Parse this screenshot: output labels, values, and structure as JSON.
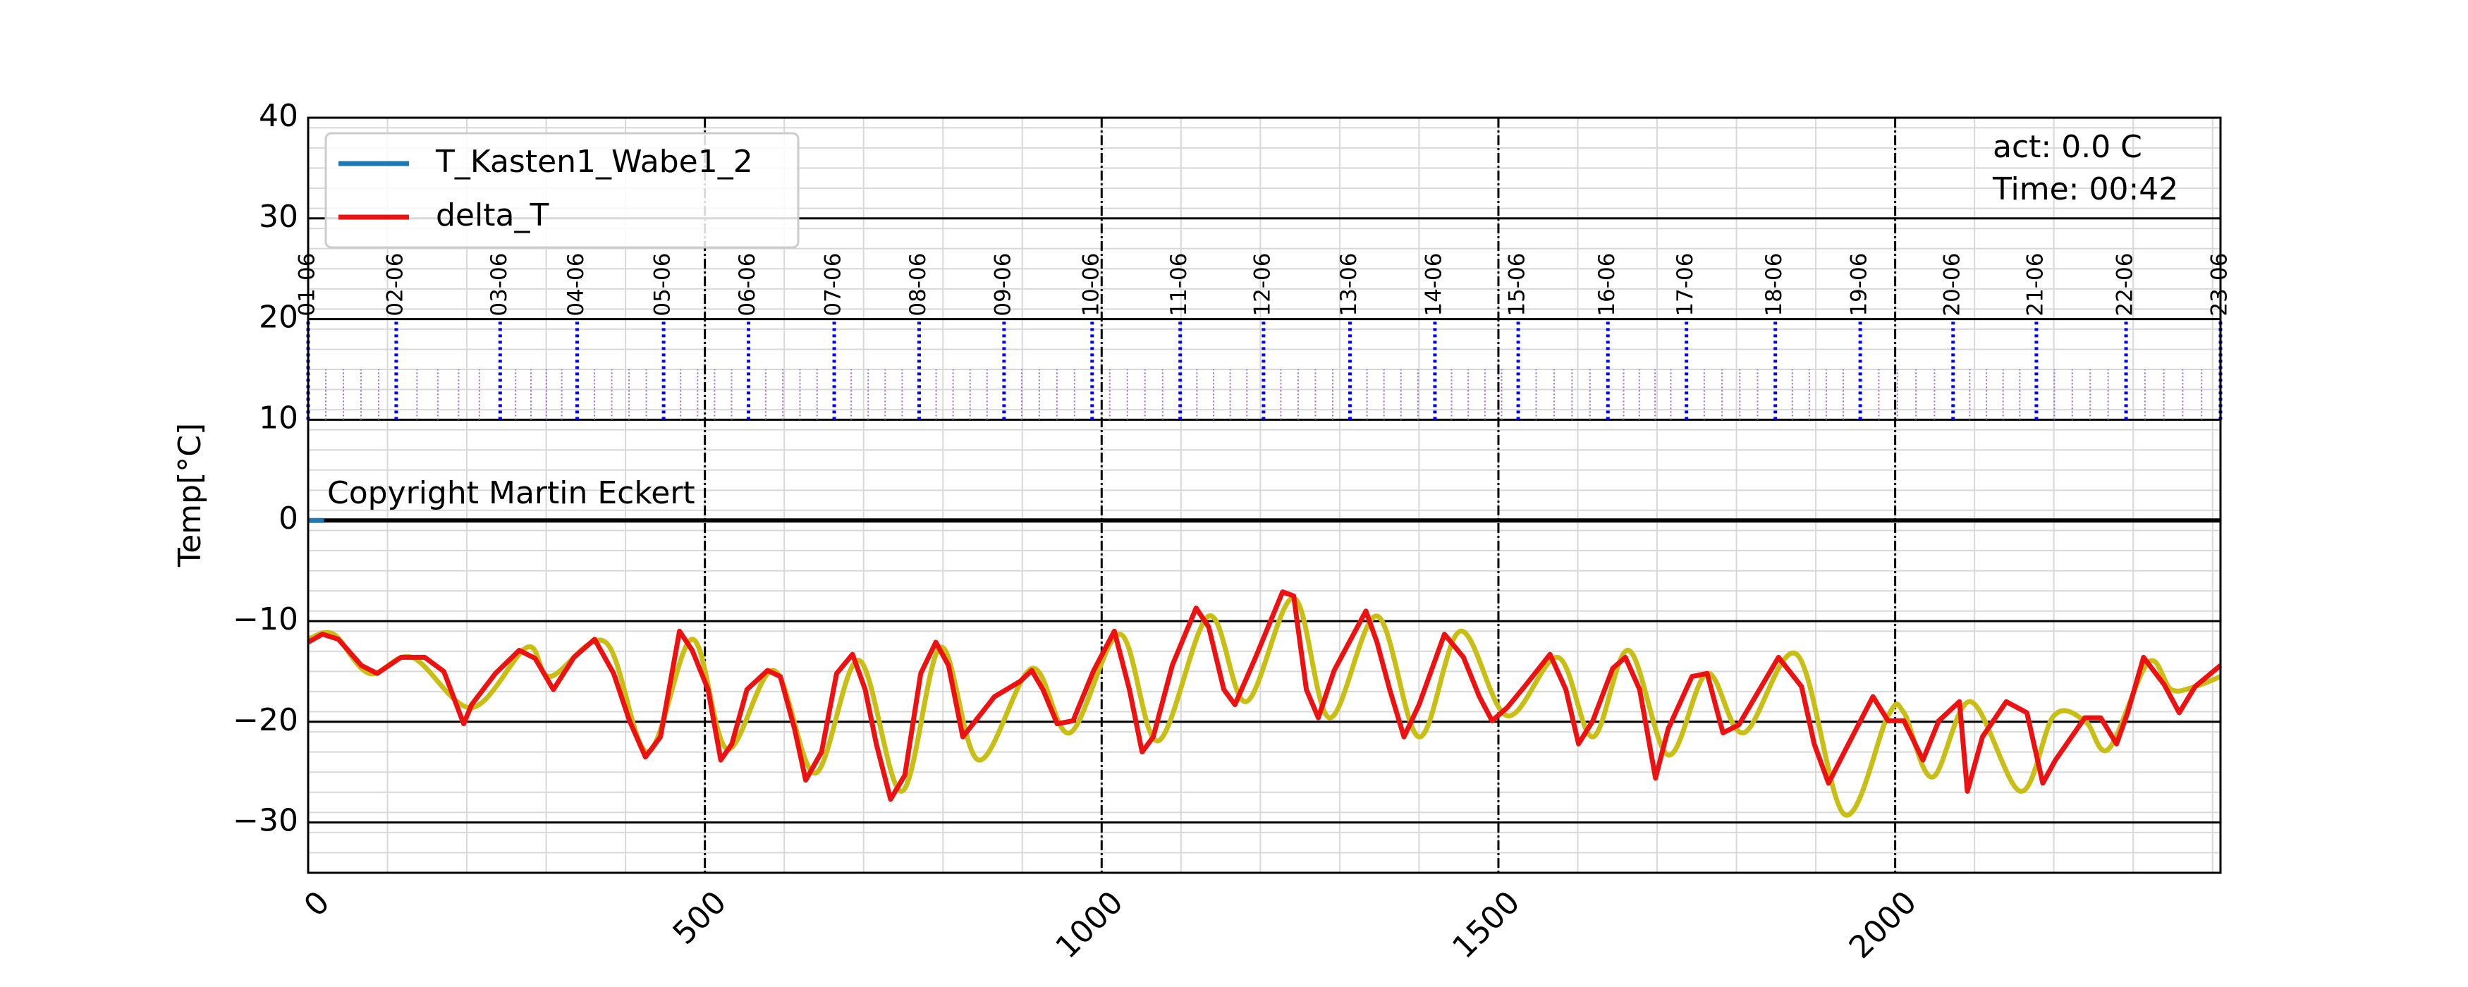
{
  "chart_data": {
    "type": "line",
    "ylabel": "Temp[°C]",
    "annotations": [
      "act: 0.0 C",
      "Time: 00:42",
      "Copyright Martin Eckert"
    ],
    "xlim": [
      0,
      2410
    ],
    "ylim": [
      -35,
      40
    ],
    "xticks": [
      0,
      500,
      1000,
      1500,
      2000
    ],
    "yticks": [
      {
        "value": -30,
        "label": "−30"
      },
      {
        "value": -20,
        "label": "−20"
      },
      {
        "value": -10,
        "label": "−10"
      },
      0,
      10,
      20,
      30,
      40
    ],
    "grid": true,
    "legend": "upper left",
    "day_markers": {
      "x": [
        0,
        111,
        242,
        339,
        448,
        555,
        663,
        770,
        877,
        988,
        1099,
        1204,
        1313,
        1420,
        1525,
        1638,
        1737,
        1849,
        1956,
        2073,
        2178,
        2291,
        2410
      ],
      "labels": [
        "01-06",
        "02-06",
        "03-06",
        "04-06",
        "05-06",
        "06-06",
        "07-06",
        "08-06",
        "09-06",
        "10-06",
        "11-06",
        "12-06",
        "13-06",
        "14-06",
        "15-06",
        "16-06",
        "17-06",
        "18-06",
        "19-06",
        "20-06",
        "21-06",
        "22-06",
        "23-06"
      ],
      "color": "#0000ff",
      "minor_color": "#9966cc",
      "ylim": [
        10,
        20
      ],
      "minor_ylim": [
        10,
        15
      ]
    },
    "series": [
      {
        "name": "T_Kasten1_Wabe1_2",
        "color": "#1f77b4",
        "x": [
          0,
          20
        ],
        "values": [
          0,
          0
        ]
      },
      {
        "name": "delta_T",
        "color": "#ee1111",
        "x": [
          0,
          18,
          38,
          67,
          87,
          117,
          147,
          171,
          196,
          206,
          236,
          266,
          286,
          309,
          335,
          361,
          385,
          405,
          425,
          444,
          468,
          484,
          504,
          520,
          534,
          553,
          579,
          595,
          613,
          627,
          647,
          666,
          686,
          702,
          716,
          734,
          752,
          772,
          791,
          807,
          825,
          841,
          865,
          897,
          912,
          926,
          944,
          964,
          990,
          1016,
          1035,
          1051,
          1065,
          1089,
          1119,
          1135,
          1154,
          1168,
          1194,
          1228,
          1242,
          1258,
          1273,
          1293,
          1333,
          1347,
          1363,
          1381,
          1400,
          1432,
          1456,
          1476,
          1492,
          1511,
          1535,
          1565,
          1585,
          1601,
          1619,
          1644,
          1660,
          1678,
          1698,
          1714,
          1744,
          1763,
          1783,
          1803,
          1853,
          1882,
          1898,
          1916,
          1936,
          1972,
          1991,
          2011,
          2035,
          2055,
          2081,
          2091,
          2110,
          2140,
          2166,
          2186,
          2202,
          2239,
          2259,
          2279,
          2293,
          2313,
          2339,
          2358,
          2378,
          2410
        ],
        "values": [
          -12.1,
          -11.3,
          -11.8,
          -14.4,
          -15.2,
          -13.6,
          -13.6,
          -15,
          -20.2,
          -18.3,
          -15.2,
          -12.9,
          -13.7,
          -16.8,
          -13.6,
          -11.8,
          -15.2,
          -19.9,
          -23.5,
          -21.5,
          -11,
          -12.9,
          -16.8,
          -23.8,
          -22.2,
          -16.8,
          -14.9,
          -15.5,
          -20.7,
          -25.8,
          -23,
          -15.2,
          -13.3,
          -16.8,
          -22.2,
          -27.7,
          -25.3,
          -15.2,
          -12.1,
          -14.4,
          -21.5,
          -19.9,
          -17.5,
          -16,
          -14.9,
          -16.8,
          -20.2,
          -19.9,
          -14.9,
          -11,
          -16.8,
          -23,
          -21.5,
          -14.4,
          -8.7,
          -10.6,
          -16.8,
          -18.3,
          -13.6,
          -7.1,
          -7.5,
          -16.8,
          -19.6,
          -14.9,
          -9,
          -12.1,
          -16.8,
          -21.5,
          -18.3,
          -11.3,
          -13.6,
          -17.5,
          -19.9,
          -18.6,
          -16.3,
          -13.3,
          -16.8,
          -22.2,
          -19.9,
          -14.7,
          -13.6,
          -16.8,
          -25.6,
          -20.7,
          -15.5,
          -15.2,
          -21.1,
          -20.3,
          -13.6,
          -16.5,
          -22.2,
          -26.1,
          -23,
          -17.5,
          -19.9,
          -19.9,
          -23.8,
          -19.9,
          -18,
          -26.9,
          -21.5,
          -18,
          -19.1,
          -26.1,
          -23.8,
          -19.6,
          -19.6,
          -22.2,
          -19.1,
          -13.6,
          -16.3,
          -19.1,
          -16.5,
          -14.4
        ]
      },
      {
        "color": "#c8be14",
        "smooth": true,
        "x": [
          0,
          32,
          77,
          131,
          206,
          276,
          305,
          375,
          428,
          484,
          528,
          587,
          639,
          694,
          748,
          797,
          845,
          912,
          960,
          1023,
          1071,
          1135,
          1182,
          1242,
          1287,
          1347,
          1400,
          1452,
          1511,
          1575,
          1619,
          1664,
          1714,
          1763,
          1809,
          1876,
          1936,
          1991,
          2011,
          2047,
          2095,
          2158,
          2200,
          2239,
          2269,
          2319,
          2348,
          2378,
          2410
        ],
        "values": [
          -11.8,
          -11.3,
          -15.2,
          -13.6,
          -18.6,
          -12.6,
          -15.5,
          -12.1,
          -23,
          -11.8,
          -22.7,
          -14.9,
          -25.1,
          -13.9,
          -26.9,
          -12.6,
          -23.8,
          -14.7,
          -21.1,
          -11.3,
          -21.9,
          -9.5,
          -18,
          -7.7,
          -19.6,
          -9.5,
          -21.5,
          -11,
          -19.4,
          -13.6,
          -21.5,
          -12.9,
          -23.3,
          -15.2,
          -21.1,
          -13.3,
          -29.2,
          -19.4,
          -19.1,
          -25.5,
          -18,
          -26.9,
          -19.4,
          -19.9,
          -22.7,
          -14.1,
          -16.8,
          -16.5,
          -15.5
        ]
      }
    ]
  }
}
